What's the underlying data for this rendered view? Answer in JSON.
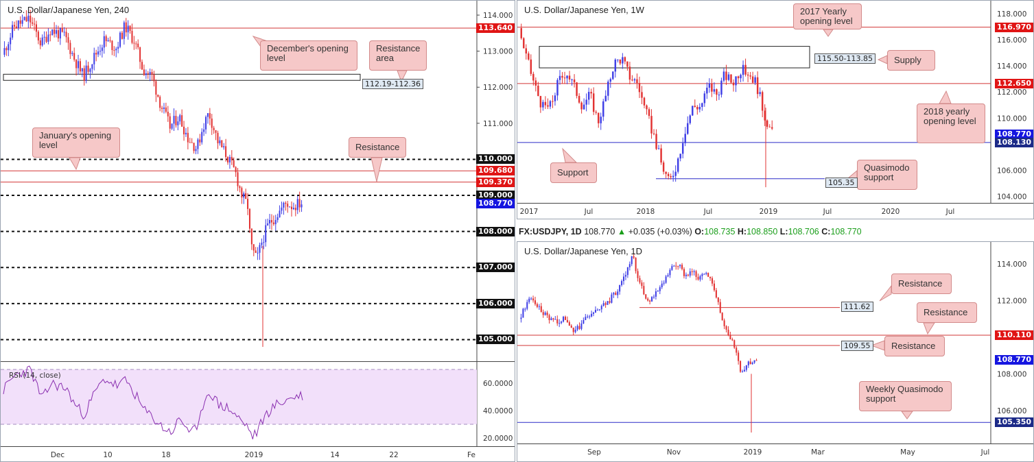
{
  "colors": {
    "bull": "#3f3fe6",
    "bear": "#e23232",
    "resistance_line": "#d23535",
    "support_line": "#2a2ac8",
    "dotted": "#111111",
    "rsi_line": "#8a2fb0",
    "rsi_fill": "#f2e0fa",
    "annotation_bg": "#f6c8c8"
  },
  "panel_h4": {
    "title": "U.S. Dollar/Japanese Yen, 240",
    "price_ticks": [
      "114.000",
      "113.000",
      "112.000",
      "111.000",
      "110.000",
      "109.000",
      "108.000",
      "107.000",
      "106.000",
      "105.000"
    ],
    "time_ticks": [
      "Dec",
      "10",
      "18",
      "2019",
      "14",
      "22",
      "Fe"
    ],
    "price_labels": [
      {
        "text": "113.640",
        "price": 113.64,
        "kind": "red"
      },
      {
        "text": "110.000",
        "price": 110.0,
        "kind": "black"
      },
      {
        "text": "109.680",
        "price": 109.68,
        "kind": "red"
      },
      {
        "text": "109.370",
        "price": 109.37,
        "kind": "red"
      },
      {
        "text": "109.000",
        "price": 109.0,
        "kind": "black"
      },
      {
        "text": "108.770",
        "price": 108.77,
        "kind": "blue"
      },
      {
        "text": "108.000",
        "price": 108.0,
        "kind": "black"
      },
      {
        "text": "107.000",
        "price": 107.0,
        "kind": "black"
      },
      {
        "text": "106.000",
        "price": 106.0,
        "kind": "black"
      },
      {
        "text": "105.000",
        "price": 105.0,
        "kind": "black"
      }
    ],
    "box_label": "112.19-112.36",
    "annotations": {
      "december_open": "December's opening level",
      "resistance_area": "Resistance area",
      "january_open": "January's opening level",
      "resistance": "Resistance"
    },
    "rsi": {
      "label": "RSI (14, close)",
      "ticks": [
        "60.0000",
        "40.0000",
        "20.0000"
      ],
      "upper": 70,
      "lower": 30
    }
  },
  "panel_w1": {
    "title": "U.S. Dollar/Japanese Yen, 1W",
    "price_ticks": [
      "118.000",
      "116.000",
      "114.000",
      "112.000",
      "110.000",
      "108.000",
      "106.000",
      "104.000"
    ],
    "time_ticks": [
      "2017",
      "Jul",
      "2018",
      "Jul",
      "2019",
      "Jul",
      "2020",
      "Jul"
    ],
    "price_labels": [
      {
        "text": "116.970",
        "price": 116.97,
        "kind": "red"
      },
      {
        "text": "112.650",
        "price": 112.65,
        "kind": "red"
      },
      {
        "text": "108.770",
        "price": 108.77,
        "kind": "blue"
      },
      {
        "text": "108.130",
        "price": 108.13,
        "kind": "navy"
      }
    ],
    "box_labels": {
      "supply": "115.50-113.85",
      "qm": "105.35"
    },
    "annotations": {
      "yearly_2017": "2017 Yearly opening level",
      "supply": "Supply",
      "yearly_2018": "2018 yearly opening level",
      "support": "Support",
      "quasimodo": "Quasimodo support"
    }
  },
  "ohlc": {
    "symbol": "FX:USDJPY, 1D",
    "last": "108.770",
    "change": "+0.035 (+0.03%)",
    "o_label": "O:",
    "o": "108.735",
    "h_label": "H:",
    "h": "108.850",
    "l_label": "L:",
    "l": "108.706",
    "c_label": "C:",
    "c": "108.770"
  },
  "panel_d1": {
    "title": "U.S. Dollar/Japanese Yen, 1D",
    "price_ticks": [
      "114.000",
      "112.000",
      "110.000",
      "108.000",
      "106.000"
    ],
    "time_ticks": [
      "Sep",
      "Nov",
      "2019",
      "Mar",
      "May",
      "Jul"
    ],
    "price_labels": [
      {
        "text": "110.110",
        "price": 110.11,
        "kind": "red"
      },
      {
        "text": "108.770",
        "price": 108.77,
        "kind": "blue"
      },
      {
        "text": "105.350",
        "price": 105.35,
        "kind": "navy"
      }
    ],
    "box_labels": {
      "r1": "111.62",
      "r2": "109.55"
    },
    "annotations": {
      "resistance_1": "Resistance",
      "resistance_2": "Resistance",
      "resistance_3": "Resistance",
      "weekly_qm": "Weekly Quasimodo support"
    }
  },
  "chart_data": [
    {
      "type": "candlestick",
      "title": "U.S. Dollar/Japanese Yen, 240",
      "ylim": [
        104.4,
        114.4
      ],
      "x_ticks": [
        "Dec",
        "10",
        "18",
        "2019",
        "14",
        "22",
        "Fe"
      ],
      "levels": [
        113.64,
        110.0,
        109.68,
        109.37,
        109.0,
        108.0,
        107.0,
        106.0,
        105.0
      ],
      "zone": [
        112.19,
        112.36
      ],
      "last_price": 108.77,
      "path": [
        [
          0,
          112.9
        ],
        [
          4,
          113.7
        ],
        [
          9,
          113.9
        ],
        [
          13,
          113.2
        ],
        [
          16,
          113.6
        ],
        [
          21,
          113.4
        ],
        [
          24,
          112.8
        ],
        [
          27,
          112.3
        ],
        [
          31,
          112.9
        ],
        [
          34,
          113.3
        ],
        [
          38,
          113.1
        ],
        [
          41,
          113.7
        ],
        [
          44,
          113.3
        ],
        [
          47,
          112.5
        ],
        [
          50,
          112.3
        ],
        [
          53,
          111.5
        ],
        [
          56,
          110.9
        ],
        [
          59,
          111.2
        ],
        [
          62,
          110.6
        ],
        [
          65,
          110.3
        ],
        [
          67,
          110.9
        ],
        [
          69,
          111.3
        ],
        [
          72,
          110.5
        ],
        [
          75,
          110.1
        ],
        [
          78,
          109.6
        ],
        [
          80,
          109.0
        ],
        [
          82,
          108.7
        ],
        [
          83,
          107.6
        ],
        [
          85,
          107.2
        ],
        [
          87,
          107.8
        ],
        [
          89,
          108.2
        ],
        [
          91,
          108.4
        ],
        [
          93,
          108.6
        ],
        [
          95,
          108.8
        ],
        [
          97,
          108.7
        ],
        [
          100,
          108.8
        ]
      ],
      "rsi_path": [
        [
          0,
          55
        ],
        [
          4,
          66
        ],
        [
          9,
          70
        ],
        [
          13,
          48
        ],
        [
          16,
          60
        ],
        [
          21,
          56
        ],
        [
          24,
          44
        ],
        [
          27,
          37
        ],
        [
          31,
          55
        ],
        [
          34,
          63
        ],
        [
          38,
          58
        ],
        [
          41,
          62
        ],
        [
          44,
          52
        ],
        [
          47,
          40
        ],
        [
          50,
          35
        ],
        [
          53,
          28
        ],
        [
          56,
          24
        ],
        [
          59,
          34
        ],
        [
          62,
          26
        ],
        [
          65,
          25
        ],
        [
          67,
          48
        ],
        [
          69,
          54
        ],
        [
          72,
          44
        ],
        [
          75,
          42
        ],
        [
          78,
          36
        ],
        [
          80,
          31
        ],
        [
          82,
          28
        ],
        [
          83,
          20
        ],
        [
          85,
          25
        ],
        [
          87,
          35
        ],
        [
          89,
          40
        ],
        [
          91,
          44
        ],
        [
          93,
          46
        ],
        [
          95,
          48
        ],
        [
          97,
          50
        ],
        [
          100,
          51
        ]
      ],
      "rsi_ylim": [
        15,
        75
      ]
    },
    {
      "type": "candlestick",
      "title": "U.S. Dollar/Japanese Yen, 1W",
      "ylim": [
        103.5,
        119.0
      ],
      "x_ticks": [
        "2017",
        "Jul",
        "2018",
        "Jul",
        "2019",
        "Jul",
        "2020",
        "Jul"
      ],
      "levels": [
        116.97,
        112.65,
        108.13
      ],
      "supply_zone": [
        113.85,
        115.5
      ],
      "qm_support": 105.35,
      "last_price": 108.77,
      "path": [
        [
          0,
          116.9
        ],
        [
          2,
          114.5
        ],
        [
          4,
          112.5
        ],
        [
          6,
          110.8
        ],
        [
          8,
          110.9
        ],
        [
          10,
          112.8
        ],
        [
          12,
          113.6
        ],
        [
          14,
          112.4
        ],
        [
          16,
          111.0
        ],
        [
          18,
          111.8
        ],
        [
          20,
          109.7
        ],
        [
          22,
          111.7
        ],
        [
          24,
          114.2
        ],
        [
          26,
          114.6
        ],
        [
          28,
          113.2
        ],
        [
          30,
          112.7
        ],
        [
          32,
          110.5
        ],
        [
          34,
          108.8
        ],
        [
          36,
          106.5
        ],
        [
          38,
          105.0
        ],
        [
          40,
          106.6
        ],
        [
          42,
          109.1
        ],
        [
          44,
          110.9
        ],
        [
          46,
          110.9
        ],
        [
          48,
          112.5
        ],
        [
          50,
          111.8
        ],
        [
          52,
          113.3
        ],
        [
          54,
          112.7
        ],
        [
          56,
          113.7
        ],
        [
          58,
          113.5
        ],
        [
          60,
          112.7
        ],
        [
          62,
          110.3
        ],
        [
          64,
          108.8
        ]
      ]
    },
    {
      "type": "candlestick",
      "title": "U.S. Dollar/Japanese Yen, 1D",
      "ylim": [
        104.2,
        115.2
      ],
      "x_ticks": [
        "Sep",
        "Nov",
        "2019",
        "Mar",
        "May",
        "Jul"
      ],
      "levels": [
        111.62,
        110.11,
        109.55,
        105.35
      ],
      "last_price": 108.77,
      "path": [
        [
          0,
          111.0
        ],
        [
          3,
          112.2
        ],
        [
          6,
          111.4
        ],
        [
          9,
          110.8
        ],
        [
          12,
          111.0
        ],
        [
          15,
          110.3
        ],
        [
          17,
          110.9
        ],
        [
          20,
          111.4
        ],
        [
          23,
          111.8
        ],
        [
          26,
          112.5
        ],
        [
          28,
          113.4
        ],
        [
          30,
          114.5
        ],
        [
          32,
          113.0
        ],
        [
          34,
          112.0
        ],
        [
          36,
          112.3
        ],
        [
          38,
          112.8
        ],
        [
          40,
          113.6
        ],
        [
          42,
          114.0
        ],
        [
          44,
          113.4
        ],
        [
          46,
          113.6
        ],
        [
          48,
          113.2
        ],
        [
          50,
          113.5
        ],
        [
          52,
          112.6
        ],
        [
          54,
          111.0
        ],
        [
          56,
          110.0
        ],
        [
          58,
          109.0
        ],
        [
          59,
          107.9
        ],
        [
          61,
          108.6
        ],
        [
          63,
          108.8
        ]
      ]
    }
  ]
}
